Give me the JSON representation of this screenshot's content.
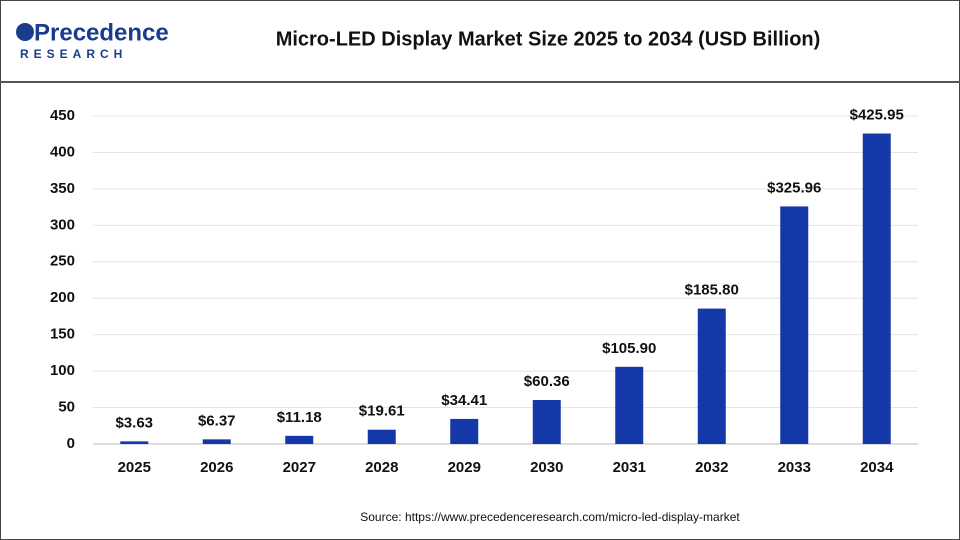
{
  "logo": {
    "name": "Precedence",
    "sub": "RESEARCH"
  },
  "chart_data": {
    "type": "bar",
    "title": "Micro-LED Display Market Size 2025 to 2034 (USD Billion)",
    "categories": [
      "2025",
      "2026",
      "2027",
      "2028",
      "2029",
      "2030",
      "2031",
      "2032",
      "2033",
      "2034"
    ],
    "values": [
      3.63,
      6.37,
      11.18,
      19.61,
      34.41,
      60.36,
      105.9,
      185.8,
      325.96,
      425.95
    ],
    "value_labels": [
      "$3.63",
      "$6.37",
      "$11.18",
      "$19.61",
      "$34.41",
      "$60.36",
      "$105.90",
      "$185.80",
      "$325.96",
      "$425.95"
    ],
    "color": "#1538a8",
    "ylim": [
      0,
      450
    ],
    "yticks": [
      0,
      50,
      100,
      150,
      200,
      250,
      300,
      350,
      400,
      450
    ],
    "grid": true,
    "source": "Source: https://www.precedenceresearch.com/micro-led-display-market"
  }
}
